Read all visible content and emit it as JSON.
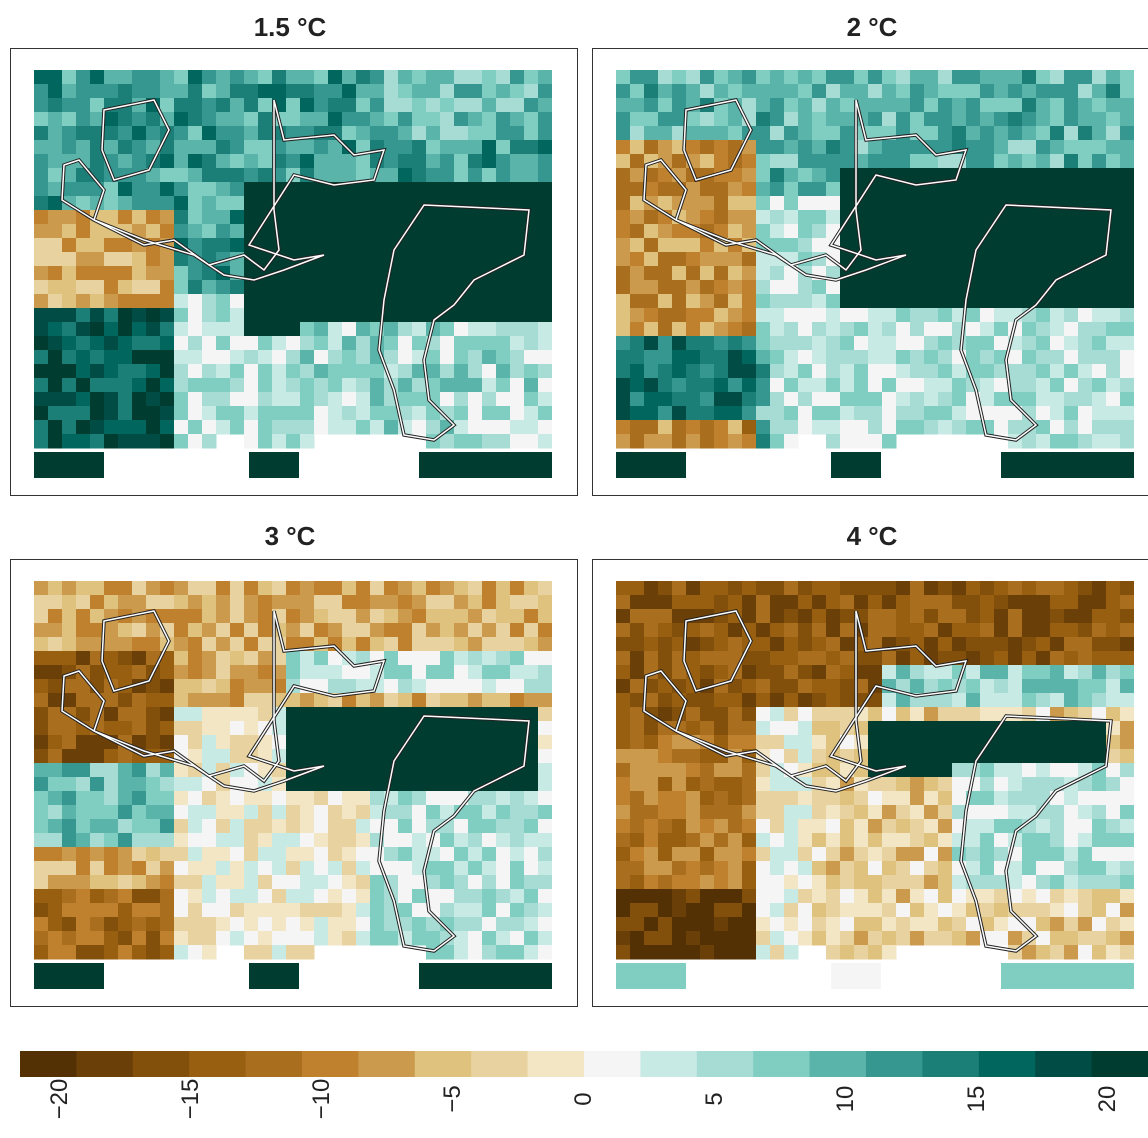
{
  "panels": [
    {
      "title": "1.5 °C"
    },
    {
      "title": "2 °C"
    },
    {
      "title": "3 °C"
    },
    {
      "title": "4 °C"
    }
  ],
  "legend": {
    "min": -20,
    "max": 20,
    "ticks": [
      "−20",
      "−15",
      "−10",
      "−5",
      "0",
      "5",
      "10",
      "15",
      "20"
    ],
    "tick_values": [
      -20,
      -15,
      -10,
      -5,
      0,
      5,
      10,
      15,
      20
    ],
    "colors": [
      "#543005",
      "#6b3f08",
      "#83500b",
      "#995f10",
      "#aa6e1f",
      "#bf812d",
      "#cc9a4d",
      "#dfc27d",
      "#e8d3a0",
      "#f2e6c5",
      "#f5f5f5",
      "#c7eae5",
      "#a7dcd4",
      "#80cdc1",
      "#5ab4a9",
      "#35978f",
      "#1b7f77",
      "#01665e",
      "#014d46",
      "#003c30"
    ]
  },
  "colors": {
    "outline": "#ffffff",
    "outline_dark": "#222222",
    "panel_border": "#333333"
  }
}
